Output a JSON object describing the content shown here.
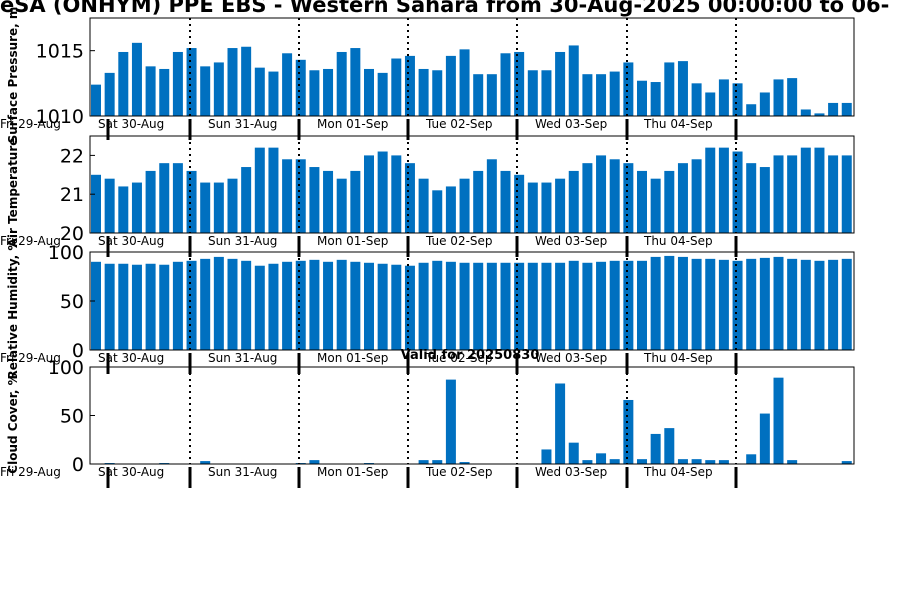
{
  "title": "eSA (ONHYM) PPE EBS - Western Sahara from 30-Aug-2025 00:00:00 to 06-",
  "valid_label": "Valid for 20250830",
  "colors": {
    "bar": "#0070c0",
    "axis": "#000000",
    "background": "#ffffff"
  },
  "day_labels": [
    "Fri 29-Aug",
    "Sat 30-Aug",
    "Sun 31-Aug",
    "Mon 01-Sep",
    "Tue 02-Sep",
    "Wed 03-Sep",
    "Thu 04-Sep"
  ],
  "chart_data": [
    {
      "type": "bar",
      "ylabel": "Surface Pressure, m",
      "ylim": [
        1010,
        1017.5
      ],
      "yticks": [
        1010,
        1015
      ],
      "values": [
        1012.4,
        1013.3,
        1014.9,
        1015.6,
        1013.8,
        1013.6,
        1014.9,
        1015.2,
        1013.8,
        1014.1,
        1015.2,
        1015.3,
        1013.7,
        1013.4,
        1014.8,
        1014.3,
        1013.5,
        1013.6,
        1014.9,
        1015.2,
        1013.6,
        1013.3,
        1014.4,
        1014.6,
        1013.6,
        1013.5,
        1014.6,
        1015.1,
        1013.2,
        1013.2,
        1014.8,
        1014.9,
        1013.5,
        1013.5,
        1014.9,
        1015.4,
        1013.2,
        1013.2,
        1013.4,
        1014.1,
        1012.7,
        1012.6,
        1014.1,
        1014.2,
        1012.5,
        1011.8,
        1012.8,
        1012.5,
        1010.9,
        1011.8,
        1012.8,
        1012.9,
        1010.5,
        1010.2,
        1011.0,
        1011.0
      ]
    },
    {
      "type": "bar",
      "ylabel": "Air Temperature",
      "ylim": [
        20,
        22.5
      ],
      "yticks": [
        20,
        21,
        22
      ],
      "values": [
        21.5,
        21.4,
        21.2,
        21.3,
        21.6,
        21.8,
        21.8,
        21.6,
        21.3,
        21.3,
        21.4,
        21.7,
        22.2,
        22.2,
        21.9,
        21.9,
        21.7,
        21.6,
        21.4,
        21.6,
        22.0,
        22.1,
        22.0,
        21.8,
        21.4,
        21.1,
        21.2,
        21.4,
        21.6,
        21.9,
        21.6,
        21.5,
        21.3,
        21.3,
        21.4,
        21.6,
        21.8,
        22.0,
        21.9,
        21.8,
        21.6,
        21.4,
        21.6,
        21.8,
        21.9,
        22.2,
        22.2,
        22.1,
        21.8,
        21.7,
        22.0,
        22.0,
        22.2,
        22.2,
        22.0,
        22.0
      ]
    },
    {
      "type": "bar",
      "ylabel": "Relative Humidity, %",
      "ylim": [
        0,
        100
      ],
      "yticks": [
        0,
        50,
        100
      ],
      "values": [
        90,
        88,
        88,
        87,
        88,
        87,
        90,
        91,
        93,
        95,
        93,
        91,
        86,
        88,
        90,
        91,
        92,
        90,
        92,
        90,
        89,
        88,
        87,
        86,
        89,
        91,
        90,
        89,
        89,
        89,
        89,
        89,
        89,
        89,
        89,
        91,
        89,
        90,
        91,
        91,
        91,
        95,
        96,
        95,
        93,
        93,
        92,
        91,
        93,
        94,
        95,
        93,
        92,
        91,
        92,
        93
      ]
    },
    {
      "type": "bar",
      "ylabel": "Cloud Cover, %",
      "ylim": [
        0,
        100
      ],
      "yticks": [
        0,
        50,
        100
      ],
      "values": [
        0,
        1,
        0,
        0,
        0,
        1,
        0,
        0,
        3,
        0,
        0,
        0,
        0,
        0,
        0,
        1,
        4,
        0,
        0,
        0,
        1,
        0,
        0,
        0,
        4,
        4,
        87,
        2,
        0,
        0,
        0,
        0,
        0,
        15,
        83,
        22,
        4,
        11,
        5,
        66,
        5,
        31,
        37,
        5,
        5,
        4,
        4,
        0,
        10,
        52,
        89,
        4,
        0,
        0,
        0,
        3
      ]
    }
  ]
}
